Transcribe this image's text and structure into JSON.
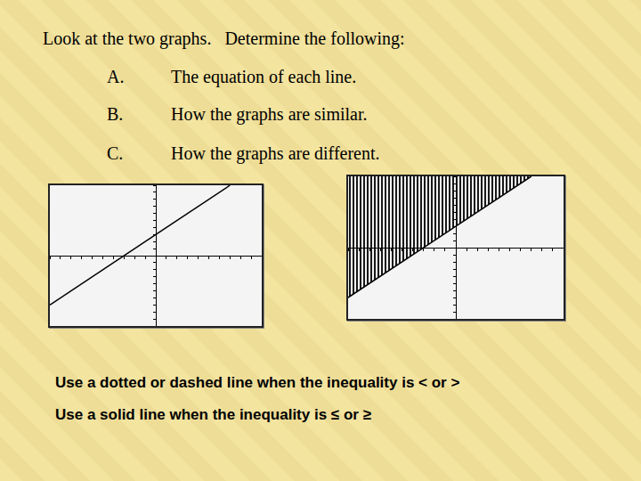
{
  "header": "Look at the two graphs.   Determine the following:",
  "items": [
    {
      "letter": "A.",
      "text": "The equation of each line."
    },
    {
      "letter": "B.",
      "text": "How the graphs are similar."
    },
    {
      "letter": "C.",
      "text": "How the graphs are different."
    }
  ],
  "notes": [
    "Use a dotted or dashed line when the inequality is < or >",
    "Use a solid line when the inequality is ≤ or ≥"
  ],
  "chart_data": [
    {
      "type": "line",
      "x": [
        -10,
        7
      ],
      "values": [
        -7,
        10
      ],
      "color": "#000000",
      "line_style": "solid",
      "xlim": [
        -10,
        10
      ],
      "ylim": [
        -10,
        10
      ],
      "xticks": [
        -10,
        -9,
        -8,
        -7,
        -6,
        -5,
        -4,
        -3,
        -2,
        -1,
        0,
        1,
        2,
        3,
        4,
        5,
        6,
        7,
        8,
        9,
        10
      ],
      "yticks": [
        -10,
        -9,
        -8,
        -7,
        -6,
        -5,
        -4,
        -3,
        -2,
        -1,
        0,
        1,
        2,
        3,
        4,
        5,
        6,
        7,
        8,
        9,
        10
      ],
      "tick_labels": false,
      "grid": false
    },
    {
      "type": "area",
      "x": [
        -10,
        7
      ],
      "values": [
        -7,
        10
      ],
      "color": "#000000",
      "line_style": "solid",
      "xlim": [
        -10,
        10
      ],
      "ylim": [
        -10,
        10
      ],
      "xticks": [
        -10,
        -9,
        -8,
        -7,
        -6,
        -5,
        -4,
        -3,
        -2,
        -1,
        0,
        1,
        2,
        3,
        4,
        5,
        6,
        7,
        8,
        9,
        10
      ],
      "yticks": [
        -10,
        -9,
        -8,
        -7,
        -6,
        -5,
        -4,
        -3,
        -2,
        -1,
        0,
        1,
        2,
        3,
        4,
        5,
        6,
        7,
        8,
        9,
        10
      ],
      "tick_labels": false,
      "grid": false
    }
  ]
}
